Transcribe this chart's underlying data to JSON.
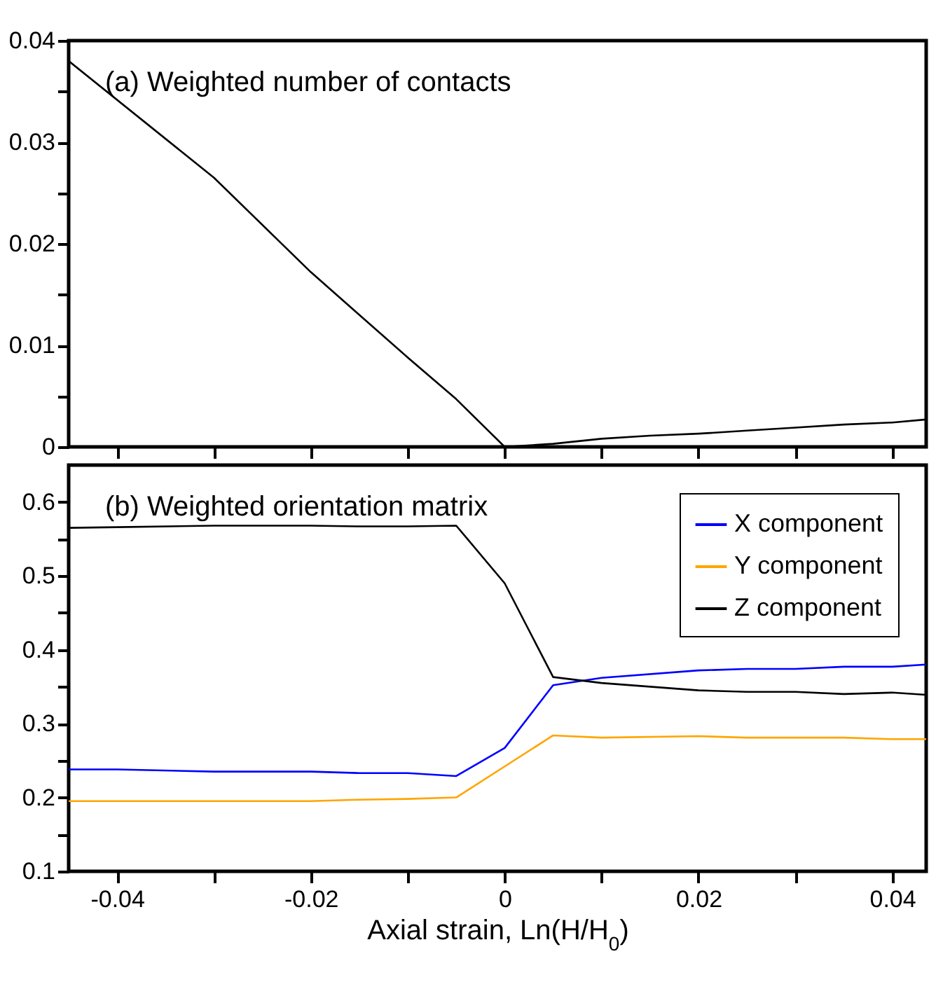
{
  "chart_data": [
    {
      "type": "line",
      "annotations": [
        "(a) Weighted number of contacts"
      ],
      "tick_labels": "y",
      "grid": false,
      "xlim": [
        -0.045,
        0.0435
      ],
      "xticks": [
        {
          "value": -0.04,
          "label": null
        },
        {
          "value": -0.03,
          "label": null
        },
        {
          "value": -0.02,
          "label": null
        },
        {
          "value": -0.01,
          "label": null
        },
        {
          "value": 0,
          "label": null
        },
        {
          "value": 0.01,
          "label": null
        },
        {
          "value": 0.02,
          "label": null
        },
        {
          "value": 0.03,
          "label": null
        },
        {
          "value": 0.04,
          "label": null
        }
      ],
      "ylim": [
        0,
        0.04
      ],
      "yticks": [
        0,
        {
          "value": 0.005,
          "label": null
        },
        0.01,
        {
          "value": 0.015,
          "label": null
        },
        0.02,
        {
          "value": 0.025,
          "label": null
        },
        0.03,
        {
          "value": 0.035,
          "label": null
        },
        0.04
      ],
      "x": [
        -0.045,
        -0.03,
        -0.02,
        -0.01,
        -0.005,
        0,
        0.005,
        0.01,
        0.015,
        0.02,
        0.025,
        0.03,
        0.035,
        0.04,
        0.0435
      ],
      "series": [
        {
          "color": "#000000",
          "values": [
            0.038,
            0.0265,
            0.0172,
            0.0088,
            0.0047,
            0,
            0.0003,
            0.0008,
            0.0011,
            0.0013,
            0.0016,
            0.0019,
            0.0022,
            0.0024,
            0.0027
          ]
        }
      ]
    },
    {
      "type": "line",
      "annotations": [
        "(b) Weighted orientation matrix"
      ],
      "xlabel": "Axial strain, Ln(H/H$_{0}$)",
      "grid": false,
      "legend": "top right",
      "xlim": [
        -0.045,
        0.0435
      ],
      "xticks": [
        -0.04,
        {
          "value": -0.03,
          "label": null
        },
        -0.02,
        {
          "value": -0.01,
          "label": null
        },
        0,
        {
          "value": 0.01,
          "label": null
        },
        0.02,
        {
          "value": 0.03,
          "label": null
        },
        0.04
      ],
      "ylim": [
        0.1,
        0.65
      ],
      "yticks": [
        0.1,
        {
          "value": 0.15,
          "label": null
        },
        0.2,
        {
          "value": 0.25,
          "label": null
        },
        0.3,
        {
          "value": 0.35,
          "label": null
        },
        0.4,
        {
          "value": 0.45,
          "label": null
        },
        0.5,
        {
          "value": 0.55,
          "label": null
        },
        0.6
      ],
      "x": [
        -0.045,
        -0.04,
        -0.03,
        -0.02,
        -0.015,
        -0.01,
        -0.005,
        0,
        0.005,
        0.01,
        0.02,
        0.025,
        0.03,
        0.035,
        0.04,
        0.0435
      ],
      "series": [
        {
          "name": "X component",
          "color": "#0000ff",
          "values": [
            0.238,
            0.238,
            0.235,
            0.235,
            0.233,
            0.233,
            0.229,
            0.267,
            0.352,
            0.362,
            0.372,
            0.374,
            0.374,
            0.377,
            0.377,
            0.38
          ]
        },
        {
          "name": "Y component",
          "color": "#ffa500",
          "values": [
            0.195,
            0.195,
            0.195,
            0.195,
            0.197,
            0.198,
            0.2,
            0.242,
            0.284,
            0.281,
            0.283,
            0.281,
            0.281,
            0.281,
            0.279,
            0.279
          ]
        },
        {
          "name": "Z component",
          "color": "#000000",
          "values": [
            0.565,
            0.566,
            0.568,
            0.568,
            0.567,
            0.567,
            0.568,
            0.49,
            0.363,
            0.355,
            0.345,
            0.343,
            0.343,
            0.34,
            0.342,
            0.339
          ]
        }
      ]
    }
  ]
}
